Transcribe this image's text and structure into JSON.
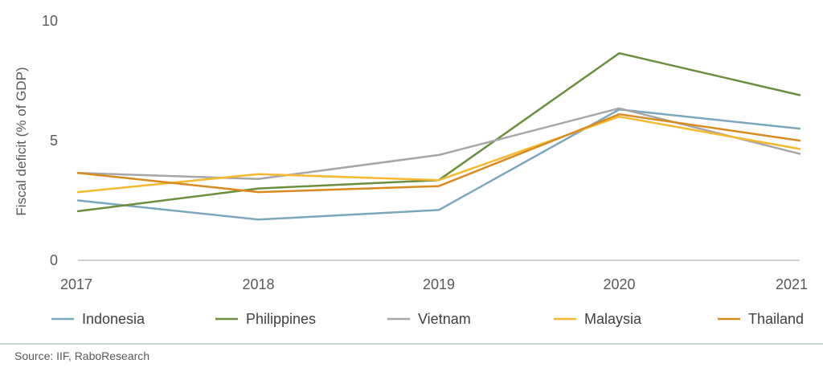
{
  "chart_data": {
    "type": "line",
    "ylabel": "Fiscal deficit (% of GDP)",
    "xlabel": "",
    "categories": [
      "2017",
      "2018",
      "2019",
      "2020",
      "2021"
    ],
    "yticks": [
      "0",
      "5",
      "10"
    ],
    "ylim": [
      0,
      10
    ],
    "grid": false,
    "legend_position": "bottom",
    "series": [
      {
        "name": "Indonesia",
        "color": "#7BA7BC",
        "values": [
          2.5,
          1.7,
          2.1,
          6.3,
          5.5
        ]
      },
      {
        "name": "Philippines",
        "color": "#6B8E3E",
        "values": [
          2.05,
          3.0,
          3.35,
          8.65,
          6.9
        ]
      },
      {
        "name": "Vietnam",
        "color": "#A6A6A6",
        "values": [
          3.65,
          3.4,
          4.4,
          6.35,
          4.45
        ]
      },
      {
        "name": "Malaysia",
        "color": "#F5B82E",
        "values": [
          2.85,
          3.6,
          3.35,
          6.0,
          4.65
        ]
      },
      {
        "name": "Thailand",
        "color": "#D98A1E",
        "values": [
          3.65,
          2.85,
          3.1,
          6.1,
          5.0
        ]
      }
    ]
  },
  "source": "Source: IIF, RaboResearch"
}
